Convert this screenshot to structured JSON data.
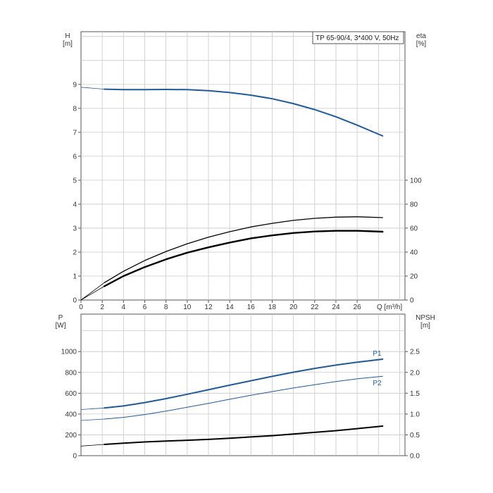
{
  "legend_title": "TP 65-90/4, 3*400 V, 50Hz",
  "colors": {
    "grid": "#c8c8c8",
    "frame": "#555555",
    "blue": "#1f5a9a",
    "black": "#000000"
  },
  "chart_data": [
    {
      "type": "line",
      "name": "upper",
      "xlabel": "Q [m³/h]",
      "x_ticks": [
        "0",
        "2",
        "4",
        "6",
        "8",
        "10",
        "12",
        "14",
        "16",
        "18",
        "20",
        "22",
        "24",
        "26"
      ],
      "xlim": [
        0,
        30.5
      ],
      "left_axis": {
        "label_line1": "H",
        "label_line2": "[m]",
        "ylim": [
          0,
          11.2
        ],
        "ticks": [
          "0",
          "1",
          "2",
          "3",
          "4",
          "5",
          "6",
          "7",
          "8",
          "9"
        ]
      },
      "right_axis": {
        "label_line1": "eta",
        "label_line2": "[%]",
        "ylim": [
          0,
          224
        ],
        "ticks": [
          "0",
          "20",
          "40",
          "60",
          "80",
          "100"
        ]
      },
      "series": [
        {
          "axis": "left",
          "color": "#1f5a9a",
          "width": 2,
          "x": [
            2.2,
            4,
            6,
            8,
            10,
            12,
            14,
            16,
            18,
            20,
            22,
            24,
            26,
            28.4
          ],
          "y": [
            8.8,
            8.78,
            8.78,
            8.79,
            8.78,
            8.74,
            8.66,
            8.55,
            8.4,
            8.2,
            7.95,
            7.65,
            7.3,
            6.85
          ]
        },
        {
          "axis": "left",
          "color": "#1f5a9a",
          "width": 0.8,
          "x": [
            0,
            2.2
          ],
          "y": [
            8.88,
            8.8
          ]
        },
        {
          "axis": "right",
          "color": "#000000",
          "width": 1.3,
          "x": [
            2.2,
            4,
            6,
            8,
            10,
            12,
            14,
            16,
            18,
            20,
            22,
            24,
            26,
            28.4
          ],
          "y": [
            14.5,
            24,
            33,
            40.5,
            47,
            52.5,
            57,
            61,
            64,
            66.5,
            68.2,
            69.2,
            69.5,
            68.8
          ]
        },
        {
          "axis": "right",
          "color": "#000000",
          "width": 0.8,
          "x": [
            0,
            2.2
          ],
          "y": [
            0,
            14.5
          ]
        },
        {
          "axis": "right",
          "color": "#000000",
          "width": 2.4,
          "x": [
            2.2,
            4,
            6,
            8,
            10,
            12,
            14,
            16,
            18,
            20,
            22,
            24,
            26,
            28.4
          ],
          "y": [
            11.5,
            20,
            27.5,
            34,
            39.5,
            44,
            48,
            51.5,
            54,
            56,
            57.2,
            57.8,
            57.8,
            57
          ]
        },
        {
          "axis": "right",
          "color": "#000000",
          "width": 0.8,
          "x": [
            0,
            2.2
          ],
          "y": [
            0,
            11.5
          ]
        }
      ]
    },
    {
      "type": "line",
      "name": "lower",
      "xlim": [
        0,
        30.5
      ],
      "left_axis": {
        "label_line1": "P",
        "label_line2": "[W]",
        "ylim": [
          0,
          1360
        ],
        "ticks": [
          "0",
          "200",
          "400",
          "600",
          "800",
          "1000"
        ]
      },
      "right_axis": {
        "label_line1": "NPSH",
        "label_line2": "[m]",
        "ylim": [
          0,
          3.4
        ],
        "ticks": [
          "0.0",
          "0.5",
          "1.0",
          "1.5",
          "2.0",
          "2.5"
        ]
      },
      "series": [
        {
          "axis": "left",
          "color": "#1f5a9a",
          "width": 2,
          "label": "P1",
          "x": [
            2.2,
            4,
            6,
            8,
            10,
            12,
            14,
            16,
            18,
            20,
            22,
            24,
            26,
            28.4
          ],
          "y": [
            458,
            478,
            510,
            548,
            590,
            633,
            677,
            720,
            762,
            802,
            838,
            870,
            898,
            927
          ]
        },
        {
          "axis": "left",
          "color": "#1f5a9a",
          "width": 0.8,
          "x": [
            0,
            2.2
          ],
          "y": [
            443,
            458
          ]
        },
        {
          "axis": "left",
          "color": "#1f5a9a",
          "width": 1,
          "label": "P2",
          "x": [
            2.2,
            4,
            6,
            8,
            10,
            12,
            14,
            16,
            18,
            20,
            22,
            24,
            26,
            28.4
          ],
          "y": [
            352,
            368,
            395,
            428,
            465,
            503,
            542,
            580,
            616,
            650,
            682,
            712,
            738,
            763
          ]
        },
        {
          "axis": "left",
          "color": "#1f5a9a",
          "width": 0.8,
          "x": [
            0,
            2.2
          ],
          "y": [
            338,
            352
          ]
        },
        {
          "axis": "right",
          "color": "#000000",
          "width": 2,
          "x": [
            2.2,
            4,
            6,
            8,
            10,
            12,
            14,
            16,
            18,
            20,
            22,
            24,
            26,
            28.4
          ],
          "y": [
            0.27,
            0.3,
            0.33,
            0.35,
            0.37,
            0.39,
            0.42,
            0.45,
            0.48,
            0.52,
            0.56,
            0.6,
            0.65,
            0.71
          ]
        },
        {
          "axis": "right",
          "color": "#000000",
          "width": 0.8,
          "x": [
            0,
            2.2
          ],
          "y": [
            0.23,
            0.27
          ]
        }
      ]
    }
  ]
}
